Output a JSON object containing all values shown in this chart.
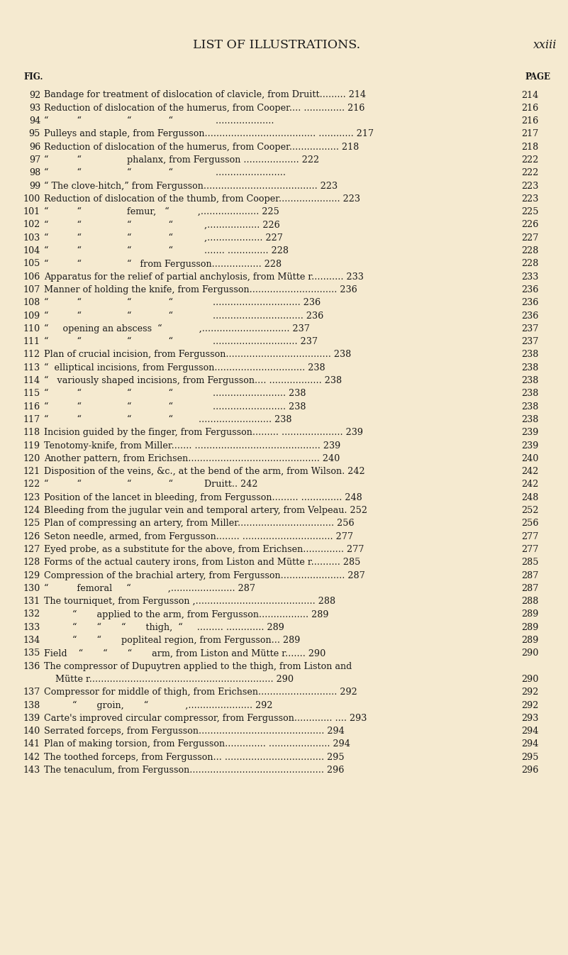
{
  "bg_color": "#f5ead0",
  "text_color": "#1a1a1a",
  "header_title": "LIST OF ILLUSTRATIONS.",
  "header_page": "xxiii",
  "col_fig": "FIG.",
  "col_page": "PAGE",
  "entries": [
    {
      "num": "92",
      "text": "Bandage for treatment of dislocation of clavicle, from Druitt......... 214",
      "page": "214"
    },
    {
      "num": "93",
      "text": "Reduction of dislocation of the humerus, from Cooper.... .............. 216",
      "page": "216"
    },
    {
      "num": "94",
      "text": "“          “                “             “               ....................",
      "page": "216"
    },
    {
      "num": "95",
      "text": "Pulleys and staple, from Fergusson...................................... ............ 217",
      "page": "217"
    },
    {
      "num": "96",
      "text": "Reduction of dislocation of the humerus, from Cooper................. 218",
      "page": "218"
    },
    {
      "num": "97",
      "text": "“          “                phalanx, from Fergusson ................... 222",
      "page": "222"
    },
    {
      "num": "98",
      "text": "“          “                “             “               ........................",
      "page": "222"
    },
    {
      "num": "99",
      "text": "“ The clove-hitch,” from Fergusson....................................... 223",
      "page": "223"
    },
    {
      "num": "100",
      "text": "Reduction of dislocation of the thumb, from Cooper..................... 223",
      "page": "223"
    },
    {
      "num": "101",
      "text": "“          “                femur,   “          ,.................... 225",
      "page": "225"
    },
    {
      "num": "102",
      "text": "“          “                “             “           ,.................. 226",
      "page": "226"
    },
    {
      "num": "103",
      "text": "“          “                “             “           ,................... 227",
      "page": "227"
    },
    {
      "num": "104",
      "text": "“          “                “             “           ....... .............. 228",
      "page": "228"
    },
    {
      "num": "105",
      "text": "“          “                “   from Fergusson................. 228",
      "page": "228"
    },
    {
      "num": "106",
      "text": "Apparatus for the relief of partial anchylosis, from Mütte r........... 233",
      "page": "233"
    },
    {
      "num": "107",
      "text": "Manner of holding the knife, from Fergusson.............................. 236",
      "page": "236"
    },
    {
      "num": "108",
      "text": "“          “                “             “              .............................. 236",
      "page": "236"
    },
    {
      "num": "109",
      "text": "“          “                “             “              ............................... 236",
      "page": "236"
    },
    {
      "num": "110",
      "text": "“     opening an abscess  “             ,.............................. 237",
      "page": "237"
    },
    {
      "num": "111",
      "text": "“          “                “             “              ............................. 237",
      "page": "237"
    },
    {
      "num": "112",
      "text": "Plan of crucial incision, from Fergusson.................................... 238",
      "page": "238"
    },
    {
      "num": "113",
      "text": "“  elliptical incisions, from Fergusson............................... 238",
      "page": "238"
    },
    {
      "num": "114",
      "text": "“   variously shaped incisions, from Fergusson.... .................. 238",
      "page": "238"
    },
    {
      "num": "115",
      "text": "“          “                “             “              ......................... 238",
      "page": "238"
    },
    {
      "num": "116",
      "text": "“          “                “             “              ......................... 238",
      "page": "238"
    },
    {
      "num": "117",
      "text": "“          “                “             “         ......................... 238",
      "page": "238"
    },
    {
      "num": "118",
      "text": "Incision guided by the finger, from Fergusson......... ..................... 239",
      "page": "239"
    },
    {
      "num": "119",
      "text": "Tenotomy-knife, from Miller....... ........................................... 239",
      "page": "239"
    },
    {
      "num": "120",
      "text": "Another pattern, from Erichsen............................................. 240",
      "page": "240"
    },
    {
      "num": "121",
      "text": "Disposition of the veins, &c., at the bend of the arm, from Wilson. 242",
      "page": "242"
    },
    {
      "num": "122",
      "text": "“          “                “             “           Druitt.. 242",
      "page": "242"
    },
    {
      "num": "123",
      "text": "Position of the lancet in bleeding, from Fergusson......... .............. 248",
      "page": "248"
    },
    {
      "num": "124",
      "text": "Bleeding from the jugular vein and temporal artery, from Velpeau. 252",
      "page": "252"
    },
    {
      "num": "125",
      "text": "Plan of compressing an artery, from Miller................................. 256",
      "page": "256"
    },
    {
      "num": "126",
      "text": "Seton needle, armed, from Fergusson........ ............................... 277",
      "page": "277"
    },
    {
      "num": "127",
      "text": "Eyed probe, as a substitute for the above, from Erichsen.............. 277",
      "page": "277"
    },
    {
      "num": "128",
      "text": "Forms of the actual cautery irons, from Liston and Mütte r.......... 285",
      "page": "285"
    },
    {
      "num": "129",
      "text": "Compression of the brachial artery, from Fergusson...................... 287",
      "page": "287"
    },
    {
      "num": "130",
      "text": "“          femoral     “             ,...................... 287",
      "page": "287"
    },
    {
      "num": "131",
      "text": "The tourniquet, from Fergusson ,......................................... 288",
      "page": "288"
    },
    {
      "num": "132",
      "text": "          “       applied to the arm, from Fergusson................. 289",
      "page": "289"
    },
    {
      "num": "133",
      "text": "          “       “       “       thigh,  “     ......... ............. 289",
      "page": "289"
    },
    {
      "num": "134",
      "text": "          “       “       popliteal region, from Fergusson... 289",
      "page": "289"
    },
    {
      "num": "135",
      "text": "Field    “       “       “       arm, from Liston and Mütte r....... 290",
      "page": "290"
    },
    {
      "num": "136",
      "text": "The compressor of Dupuytren applied to the thigh, from Liston and",
      "page": ""
    },
    {
      "num": "",
      "text": "    Mütte r............................................................... 290",
      "page": "290"
    },
    {
      "num": "137",
      "text": "Compressor for middle of thigh, from Erichsen........................... 292",
      "page": "292"
    },
    {
      "num": "138",
      "text": "          “       groin,       “             ,...................... 292",
      "page": "292"
    },
    {
      "num": "139",
      "text": "Carte's improved circular compressor, from Fergusson............. .... 293",
      "page": "293"
    },
    {
      "num": "140",
      "text": "Serrated forceps, from Fergusson........................................... 294",
      "page": "294"
    },
    {
      "num": "141",
      "text": "Plan of making torsion, from Fergusson.............. ..................... 294",
      "page": "294"
    },
    {
      "num": "142",
      "text": "The toothed forceps, from Fergusson... .................................. 295",
      "page": "295"
    },
    {
      "num": "143",
      "text": "The tenaculum, from Fergusson.............................................. 296",
      "page": "296"
    }
  ]
}
